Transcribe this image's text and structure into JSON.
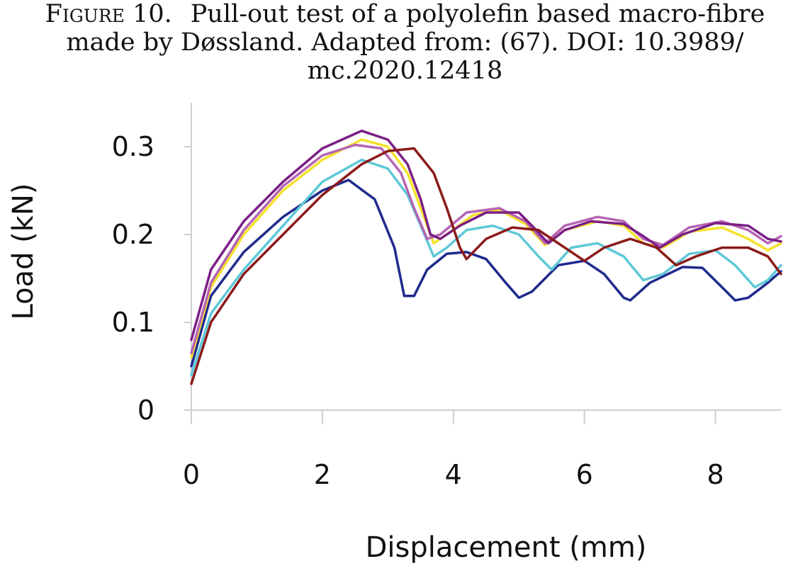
{
  "caption": {
    "figure_label": "Figure 10.",
    "line1": "Pull-out test of a polyolefin based macro-fibre",
    "line2": "made by Døssland. Adapted from: (67). DOI: 10.3989/",
    "line3": "mc.2020.12418"
  },
  "chart_data": {
    "type": "line",
    "title": "",
    "xlabel": "Displacement (mm)",
    "ylabel": "Load (kN)",
    "xlim": [
      0,
      9
    ],
    "ylim": [
      0,
      0.35
    ],
    "x_ticks": [
      0,
      2,
      4,
      6,
      8
    ],
    "x_tick_labels": [
      "0",
      "2",
      "4",
      "6",
      "8"
    ],
    "y_ticks": [
      0,
      0.1,
      0.2,
      0.3
    ],
    "y_tick_labels": [
      "0",
      "0.1",
      "0.2",
      "0.3"
    ],
    "grid": false,
    "legend": "none",
    "series": [
      {
        "color": "#1f2a8c",
        "points": [
          [
            0,
            0.05
          ],
          [
            0.3,
            0.13
          ],
          [
            0.8,
            0.18
          ],
          [
            1.4,
            0.22
          ],
          [
            2,
            0.25
          ],
          [
            2.4,
            0.262
          ],
          [
            2.8,
            0.24
          ],
          [
            3.1,
            0.185
          ],
          [
            3.25,
            0.13
          ],
          [
            3.4,
            0.13
          ],
          [
            3.6,
            0.16
          ],
          [
            3.9,
            0.178
          ],
          [
            4.2,
            0.18
          ],
          [
            4.5,
            0.172
          ],
          [
            4.8,
            0.145
          ],
          [
            5,
            0.128
          ],
          [
            5.2,
            0.135
          ],
          [
            5.6,
            0.165
          ],
          [
            6,
            0.17
          ],
          [
            6.3,
            0.155
          ],
          [
            6.6,
            0.128
          ],
          [
            6.7,
            0.125
          ],
          [
            7,
            0.145
          ],
          [
            7.5,
            0.163
          ],
          [
            7.8,
            0.162
          ],
          [
            8.1,
            0.14
          ],
          [
            8.3,
            0.125
          ],
          [
            8.5,
            0.128
          ],
          [
            8.8,
            0.145
          ],
          [
            9,
            0.158
          ]
        ]
      },
      {
        "color": "#5ec8d8",
        "points": [
          [
            0,
            0.04
          ],
          [
            0.3,
            0.11
          ],
          [
            0.8,
            0.16
          ],
          [
            1.4,
            0.21
          ],
          [
            2,
            0.26
          ],
          [
            2.6,
            0.285
          ],
          [
            3,
            0.275
          ],
          [
            3.3,
            0.245
          ],
          [
            3.5,
            0.21
          ],
          [
            3.7,
            0.175
          ],
          [
            3.9,
            0.185
          ],
          [
            4.2,
            0.205
          ],
          [
            4.6,
            0.21
          ],
          [
            5,
            0.2
          ],
          [
            5.3,
            0.175
          ],
          [
            5.5,
            0.16
          ],
          [
            5.8,
            0.185
          ],
          [
            6.2,
            0.19
          ],
          [
            6.6,
            0.175
          ],
          [
            6.9,
            0.148
          ],
          [
            7.2,
            0.155
          ],
          [
            7.6,
            0.178
          ],
          [
            8,
            0.182
          ],
          [
            8.3,
            0.165
          ],
          [
            8.6,
            0.14
          ],
          [
            8.8,
            0.148
          ],
          [
            9,
            0.165
          ]
        ]
      },
      {
        "color": "#f5e12a",
        "points": [
          [
            0,
            0.06
          ],
          [
            0.3,
            0.14
          ],
          [
            0.8,
            0.2
          ],
          [
            1.4,
            0.25
          ],
          [
            2,
            0.285
          ],
          [
            2.6,
            0.308
          ],
          [
            3,
            0.3
          ],
          [
            3.3,
            0.27
          ],
          [
            3.5,
            0.23
          ],
          [
            3.7,
            0.19
          ],
          [
            3.9,
            0.2
          ],
          [
            4.3,
            0.222
          ],
          [
            4.7,
            0.228
          ],
          [
            5.1,
            0.212
          ],
          [
            5.4,
            0.188
          ],
          [
            5.7,
            0.205
          ],
          [
            6.2,
            0.215
          ],
          [
            6.6,
            0.21
          ],
          [
            6.9,
            0.19
          ],
          [
            7.2,
            0.185
          ],
          [
            7.6,
            0.203
          ],
          [
            8.1,
            0.208
          ],
          [
            8.5,
            0.195
          ],
          [
            8.8,
            0.182
          ],
          [
            9,
            0.19
          ]
        ]
      },
      {
        "color": "#b565b5",
        "points": [
          [
            0,
            0.065
          ],
          [
            0.3,
            0.145
          ],
          [
            0.8,
            0.205
          ],
          [
            1.4,
            0.255
          ],
          [
            2,
            0.29
          ],
          [
            2.5,
            0.302
          ],
          [
            2.9,
            0.298
          ],
          [
            3.2,
            0.27
          ],
          [
            3.4,
            0.23
          ],
          [
            3.6,
            0.195
          ],
          [
            3.8,
            0.2
          ],
          [
            4.2,
            0.225
          ],
          [
            4.7,
            0.23
          ],
          [
            5.1,
            0.215
          ],
          [
            5.4,
            0.19
          ],
          [
            5.7,
            0.21
          ],
          [
            6.2,
            0.22
          ],
          [
            6.6,
            0.215
          ],
          [
            6.9,
            0.195
          ],
          [
            7.2,
            0.188
          ],
          [
            7.6,
            0.208
          ],
          [
            8.1,
            0.215
          ],
          [
            8.5,
            0.205
          ],
          [
            8.8,
            0.19
          ],
          [
            9,
            0.198
          ]
        ]
      },
      {
        "color": "#7b1f86",
        "points": [
          [
            0,
            0.08
          ],
          [
            0.3,
            0.16
          ],
          [
            0.8,
            0.215
          ],
          [
            1.4,
            0.26
          ],
          [
            2,
            0.298
          ],
          [
            2.6,
            0.318
          ],
          [
            3,
            0.308
          ],
          [
            3.3,
            0.28
          ],
          [
            3.5,
            0.24
          ],
          [
            3.65,
            0.2
          ],
          [
            3.8,
            0.195
          ],
          [
            4.1,
            0.21
          ],
          [
            4.5,
            0.225
          ],
          [
            5,
            0.225
          ],
          [
            5.2,
            0.21
          ],
          [
            5.45,
            0.19
          ],
          [
            5.7,
            0.205
          ],
          [
            6.1,
            0.215
          ],
          [
            6.6,
            0.212
          ],
          [
            6.9,
            0.198
          ],
          [
            7.15,
            0.185
          ],
          [
            7.5,
            0.2
          ],
          [
            8,
            0.213
          ],
          [
            8.5,
            0.21
          ],
          [
            8.8,
            0.195
          ],
          [
            9,
            0.192
          ]
        ]
      },
      {
        "color": "#8b1a1a",
        "points": [
          [
            0,
            0.03
          ],
          [
            0.3,
            0.1
          ],
          [
            0.8,
            0.155
          ],
          [
            1.4,
            0.2
          ],
          [
            2,
            0.245
          ],
          [
            2.6,
            0.28
          ],
          [
            3,
            0.295
          ],
          [
            3.4,
            0.298
          ],
          [
            3.7,
            0.27
          ],
          [
            3.9,
            0.23
          ],
          [
            4.1,
            0.185
          ],
          [
            4.2,
            0.172
          ],
          [
            4.5,
            0.195
          ],
          [
            4.9,
            0.208
          ],
          [
            5.3,
            0.205
          ],
          [
            5.7,
            0.185
          ],
          [
            6,
            0.17
          ],
          [
            6.3,
            0.185
          ],
          [
            6.7,
            0.195
          ],
          [
            7.1,
            0.185
          ],
          [
            7.4,
            0.165
          ],
          [
            7.7,
            0.175
          ],
          [
            8.1,
            0.185
          ],
          [
            8.5,
            0.185
          ],
          [
            8.8,
            0.175
          ],
          [
            9,
            0.155
          ]
        ]
      }
    ]
  }
}
